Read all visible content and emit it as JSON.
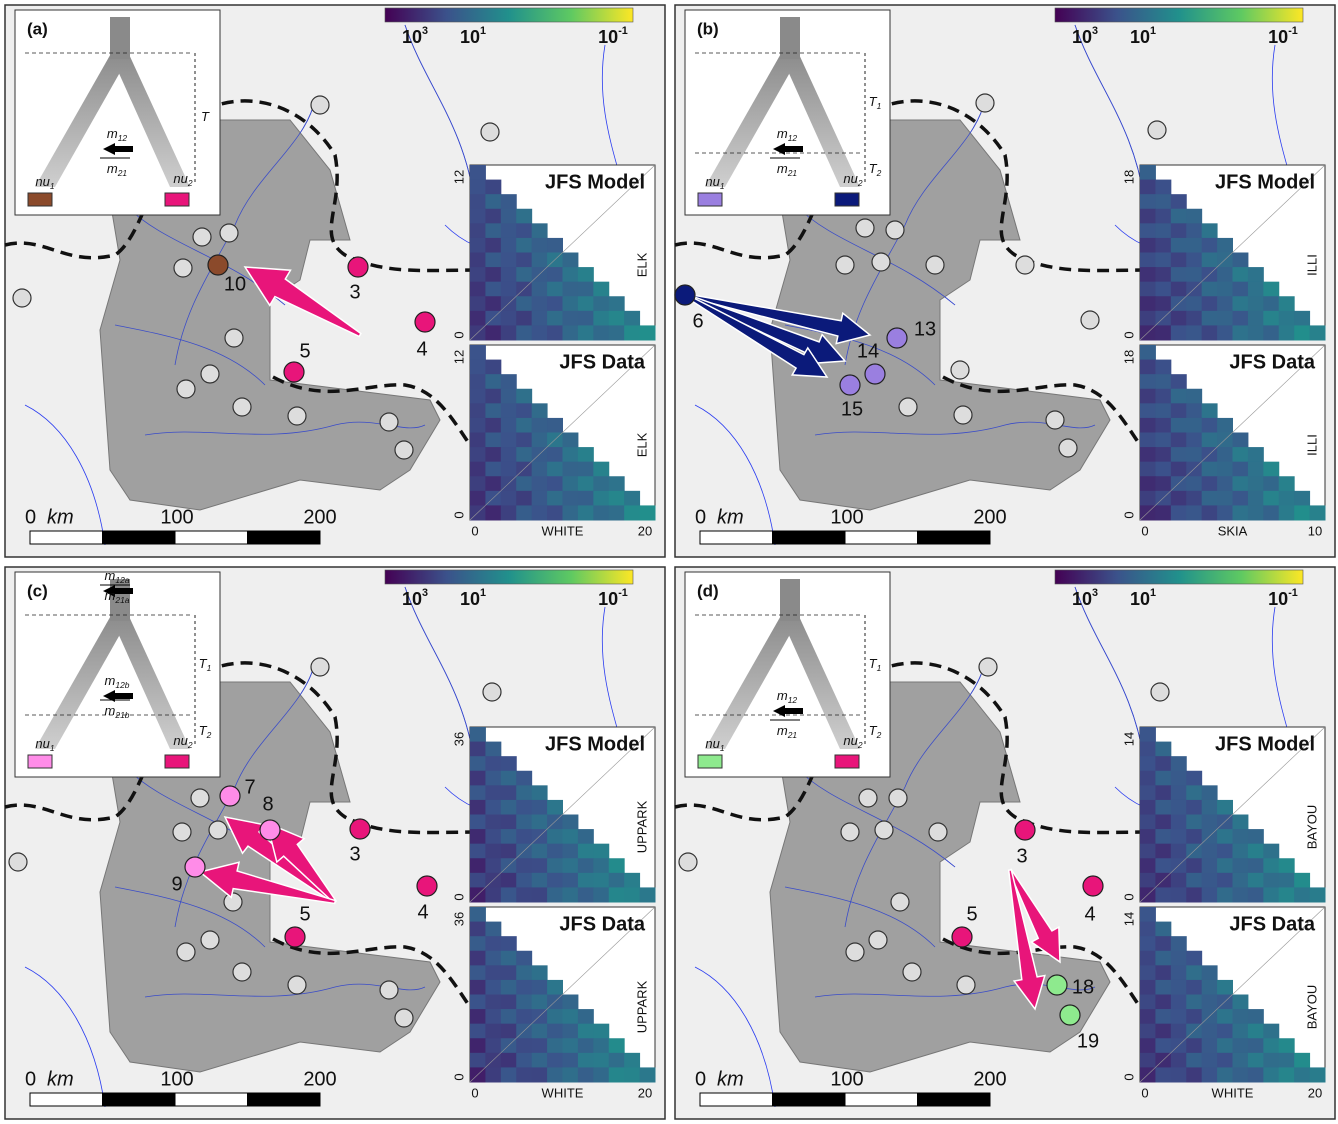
{
  "panels": [
    {
      "label": "(a)",
      "colorbar": [
        {
          "base": "10",
          "exp": "3"
        },
        {
          "base": "10",
          "exp": "1"
        },
        {
          "base": "10",
          "exp": "-1"
        }
      ],
      "diagram": {
        "pop1": {
          "base": "nu",
          "sub": "1",
          "color": "#8b4a2b"
        },
        "pop2": {
          "base": "nu",
          "sub": "2",
          "color": "#e8157a"
        },
        "migration": [
          {
            "base": "m",
            "sub": "12"
          },
          {
            "base": "m",
            "sub": "21"
          }
        ],
        "times": [
          {
            "base": "T"
          }
        ]
      },
      "sites": [
        {
          "label": "10",
          "color": "#8b4a2b"
        },
        {
          "label": "3",
          "color": "#e8157a"
        },
        {
          "label": "4",
          "color": "#e8157a"
        },
        {
          "label": "5",
          "color": "#e8157a"
        }
      ],
      "scale": {
        "zero": "0",
        "unit": "km",
        "ticks": [
          "100",
          "200"
        ]
      },
      "jfs": {
        "model_title": "JFS Model",
        "data_title": "JFS Data",
        "y_label": "ELK",
        "x_label": "WHITE",
        "y_ticks": [
          "0",
          "12"
        ],
        "x_ticks": [
          "0",
          "20"
        ]
      }
    },
    {
      "label": "(b)",
      "colorbar": [
        {
          "base": "10",
          "exp": "3"
        },
        {
          "base": "10",
          "exp": "1"
        },
        {
          "base": "10",
          "exp": "-1"
        }
      ],
      "diagram": {
        "pop1": {
          "base": "nu",
          "sub": "1",
          "color": "#9a7fe0"
        },
        "pop2": {
          "base": "nu",
          "sub": "2",
          "color": "#0b1a7a"
        },
        "migration": [
          {
            "base": "m",
            "sub": "12"
          },
          {
            "base": "m",
            "sub": "21"
          }
        ],
        "times": [
          {
            "base": "T",
            "sub": "1"
          },
          {
            "base": "T",
            "sub": "2"
          }
        ]
      },
      "sites": [
        {
          "label": "6",
          "color": "#0b1a7a"
        },
        {
          "label": "13",
          "color": "#9a7fe0"
        },
        {
          "label": "14",
          "color": "#9a7fe0"
        },
        {
          "label": "15",
          "color": "#9a7fe0"
        }
      ],
      "scale": {
        "zero": "0",
        "unit": "km",
        "ticks": [
          "100",
          "200"
        ]
      },
      "jfs": {
        "model_title": "JFS Model",
        "data_title": "JFS Data",
        "y_label": "ILLI",
        "x_label": "SKIA",
        "y_ticks": [
          "0",
          "18"
        ],
        "x_ticks": [
          "0",
          "10"
        ]
      }
    },
    {
      "label": "(c)",
      "colorbar": [
        {
          "base": "10",
          "exp": "3"
        },
        {
          "base": "10",
          "exp": "1"
        },
        {
          "base": "10",
          "exp": "-1"
        }
      ],
      "diagram": {
        "pop1": {
          "base": "nu",
          "sub": "1",
          "color": "#ff8ce8"
        },
        "pop2": {
          "base": "nu",
          "sub": "2",
          "color": "#e8157a"
        },
        "migration": [
          {
            "base": "m",
            "sub": "12a"
          },
          {
            "base": "m",
            "sub": "21a"
          },
          {
            "base": "m",
            "sub": "12b"
          },
          {
            "base": "m",
            "sub": "21b"
          }
        ],
        "times": [
          {
            "base": "T",
            "sub": "1"
          },
          {
            "base": "T",
            "sub": "2"
          }
        ]
      },
      "sites": [
        {
          "label": "7",
          "color": "#ff8ce8"
        },
        {
          "label": "8",
          "color": "#ff8ce8"
        },
        {
          "label": "9",
          "color": "#ff8ce8"
        },
        {
          "label": "3",
          "color": "#e8157a"
        },
        {
          "label": "4",
          "color": "#e8157a"
        },
        {
          "label": "5",
          "color": "#e8157a"
        }
      ],
      "scale": {
        "zero": "0",
        "unit": "km",
        "ticks": [
          "100",
          "200"
        ]
      },
      "jfs": {
        "model_title": "JFS Model",
        "data_title": "JFS Data",
        "y_label": "UPPARK",
        "x_label": "WHITE",
        "y_ticks": [
          "0",
          "36"
        ],
        "x_ticks": [
          "0",
          "20"
        ]
      }
    },
    {
      "label": "(d)",
      "colorbar": [
        {
          "base": "10",
          "exp": "3"
        },
        {
          "base": "10",
          "exp": "1"
        },
        {
          "base": "10",
          "exp": "-1"
        }
      ],
      "diagram": {
        "pop1": {
          "base": "nu",
          "sub": "1",
          "color": "#8eea8e"
        },
        "pop2": {
          "base": "nu",
          "sub": "2",
          "color": "#e8157a"
        },
        "migration": [
          {
            "base": "m",
            "sub": "12"
          },
          {
            "base": "m",
            "sub": "21"
          }
        ],
        "times": [
          {
            "base": "T",
            "sub": "1"
          },
          {
            "base": "T",
            "sub": "2"
          }
        ]
      },
      "sites": [
        {
          "label": "3",
          "color": "#e8157a"
        },
        {
          "label": "4",
          "color": "#e8157a"
        },
        {
          "label": "5",
          "color": "#e8157a"
        },
        {
          "label": "18",
          "color": "#8eea8e"
        },
        {
          "label": "19",
          "color": "#8eea8e"
        }
      ],
      "scale": {
        "zero": "0",
        "unit": "km",
        "ticks": [
          "100",
          "200"
        ]
      },
      "jfs": {
        "model_title": "JFS Model",
        "data_title": "JFS Data",
        "y_label": "BAYOU",
        "x_label": "WHITE",
        "y_ticks": [
          "0",
          "14"
        ],
        "x_ticks": [
          "0",
          "20"
        ]
      }
    }
  ]
}
